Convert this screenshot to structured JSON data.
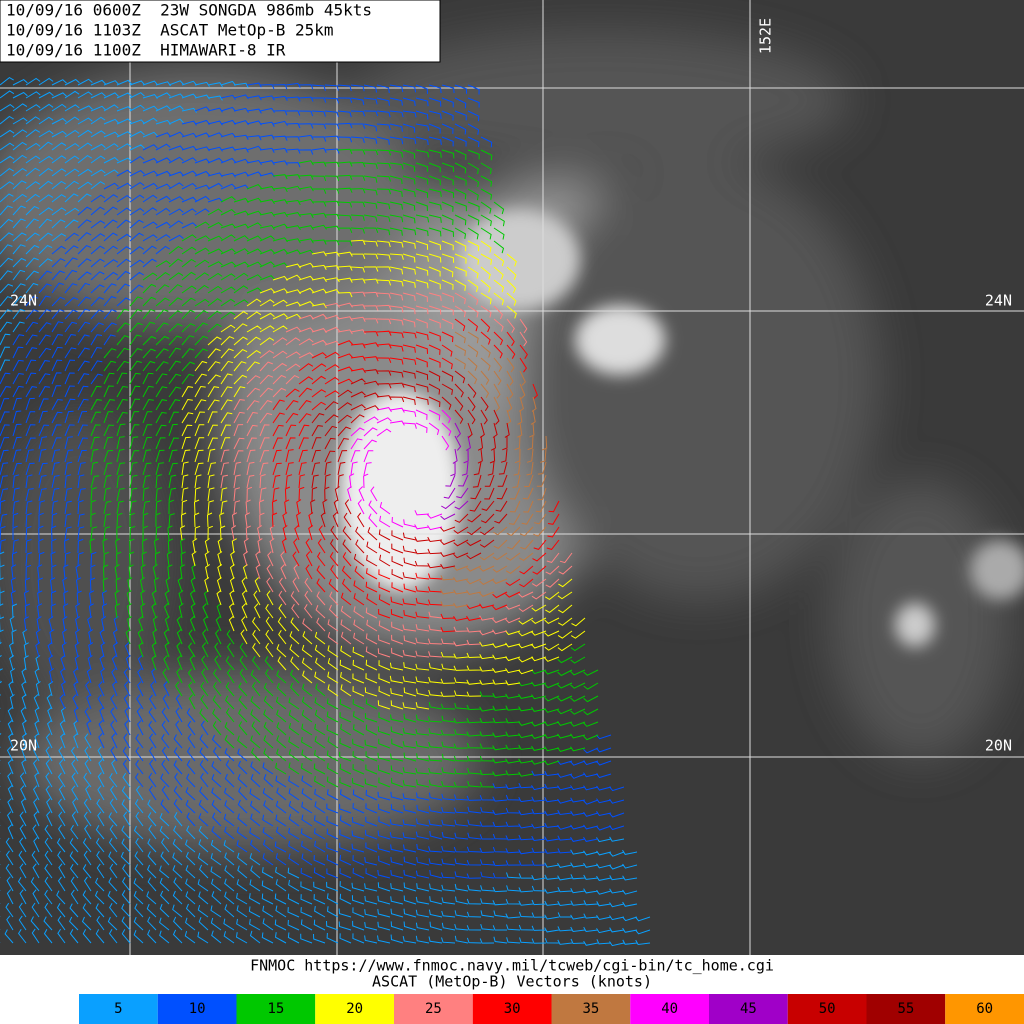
{
  "header": {
    "lines": [
      "10/09/16 0600Z  23W SONGDA 986mb 45kts",
      "10/09/16 1103Z  ASCAT MetOp-B 25km",
      "10/09/16 1100Z  HIMAWARI-8 IR"
    ]
  },
  "grid_labels": {
    "lon": [
      "152E"
    ],
    "lat": [
      "24N",
      "20N"
    ]
  },
  "footer": {
    "source": "FNMOC https://www.fnmoc.navy.mil/tcweb/cgi-bin/tc_home.cgi",
    "caption": "ASCAT (MetOp-B) Vectors (knots)"
  },
  "legend": {
    "items": [
      {
        "value": 5,
        "color": "#0aa0ff"
      },
      {
        "value": 10,
        "color": "#0050ff"
      },
      {
        "value": 15,
        "color": "#00c800"
      },
      {
        "value": 20,
        "color": "#ffff00"
      },
      {
        "value": 25,
        "color": "#ff8080"
      },
      {
        "value": 30,
        "color": "#ff0000"
      },
      {
        "value": 35,
        "color": "#c07840"
      },
      {
        "value": 40,
        "color": "#ff00ff"
      },
      {
        "value": 45,
        "color": "#a000c8"
      },
      {
        "value": 50,
        "color": "#c80000"
      },
      {
        "value": 55,
        "color": "#a00000"
      },
      {
        "value": 60,
        "color": "#ff9600"
      }
    ]
  }
}
